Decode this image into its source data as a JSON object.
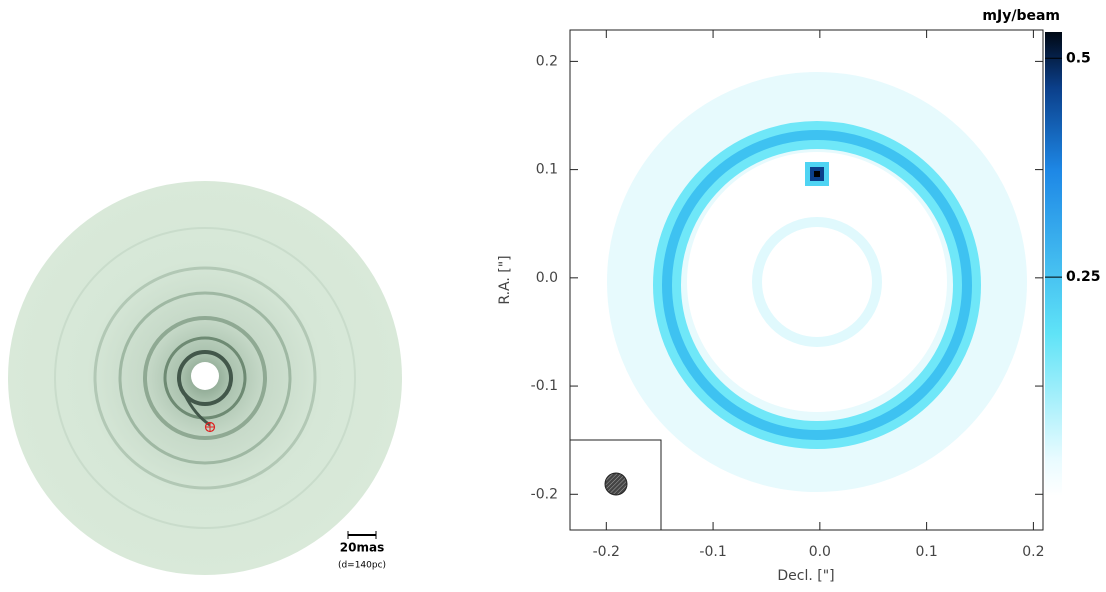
{
  "chart_data": [
    {
      "type": "image",
      "annotations": [
        "20mas",
        "(d=140pc)"
      ]
    },
    {
      "type": "heatmap",
      "xlabel": "Decl. [\"]",
      "ylabel": "R.A. [\"]",
      "xlim": [
        -0.234,
        0.209
      ],
      "ylim": [
        -0.233,
        0.229
      ],
      "xticks": [
        -0.2,
        -0.1,
        {
          "value": 0,
          "label": "0.0"
        },
        0.1,
        0.2
      ],
      "yticks": [
        -0.2,
        -0.1,
        {
          "value": 0,
          "label": "0.0"
        },
        0.1,
        0.2
      ],
      "colorbar": {
        "label": "mJy/beam",
        "lim": [
          0,
          0.53
        ],
        "ticks": [
          0.5,
          0.25
        ]
      }
    }
  ]
}
